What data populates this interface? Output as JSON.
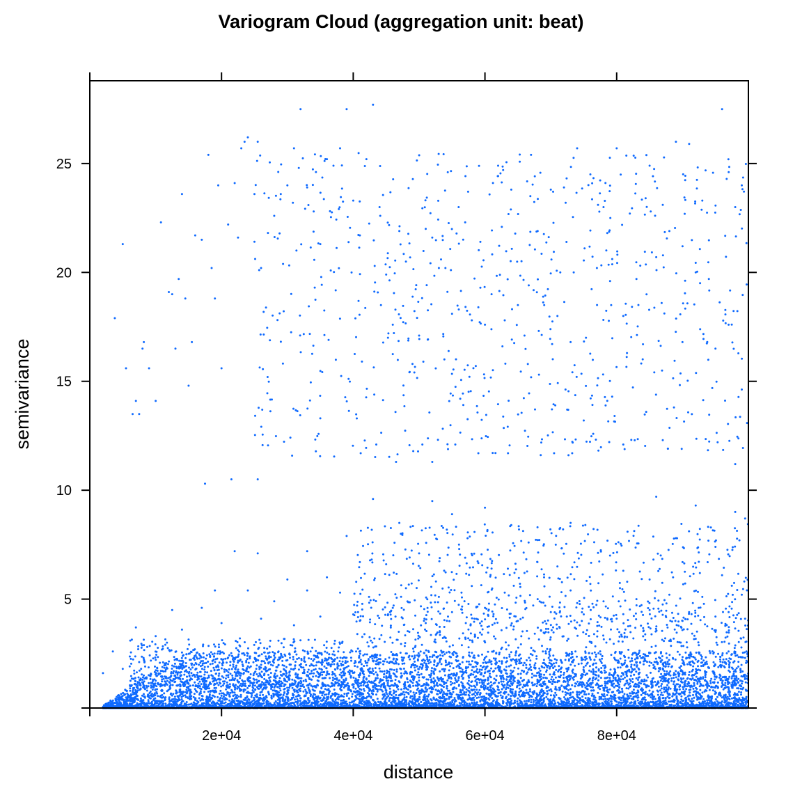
{
  "chart_data": {
    "type": "scatter",
    "title": "Variogram Cloud (aggregation unit: beat)",
    "xlabel": "distance",
    "ylabel": "semivariance",
    "xlim": [
      0,
      100000
    ],
    "ylim": [
      0,
      28.8
    ],
    "x_ticks": [
      {
        "value": 20000,
        "label": "2e+04"
      },
      {
        "value": 40000,
        "label": "4e+04"
      },
      {
        "value": 60000,
        "label": "6e+04"
      },
      {
        "value": 80000,
        "label": "8e+04"
      }
    ],
    "y_ticks": [
      {
        "value": 5,
        "label": "5"
      },
      {
        "value": 10,
        "label": "10"
      },
      {
        "value": 15,
        "label": "15"
      },
      {
        "value": 20,
        "label": "20"
      },
      {
        "value": 25,
        "label": "25"
      }
    ],
    "grid": false,
    "point_color": "#0F6AFF",
    "series": [
      {
        "values": [
          [
            5000,
            21.3
          ],
          [
            3800,
            17.9
          ],
          [
            6500,
            13.5
          ],
          [
            7500,
            13.5
          ],
          [
            7000,
            14.1
          ],
          [
            5500,
            15.6
          ],
          [
            8000,
            16.5
          ],
          [
            8200,
            16.8
          ],
          [
            9000,
            15.6
          ],
          [
            10000,
            14.1
          ],
          [
            10800,
            22.3
          ],
          [
            12000,
            19.1
          ],
          [
            12500,
            19.0
          ],
          [
            13000,
            16.5
          ],
          [
            13500,
            19.7
          ],
          [
            14000,
            23.6
          ],
          [
            14500,
            18.8
          ],
          [
            15000,
            14.8
          ],
          [
            15500,
            16.8
          ],
          [
            16000,
            21.7
          ],
          [
            17000,
            21.5
          ],
          [
            18000,
            25.4
          ],
          [
            18500,
            20.2
          ],
          [
            19000,
            18.8
          ],
          [
            19500,
            24.0
          ],
          [
            20000,
            15.6
          ],
          [
            21000,
            22.2
          ],
          [
            22000,
            24.1
          ],
          [
            22500,
            21.6
          ],
          [
            23000,
            25.7
          ],
          [
            23500,
            26.0
          ],
          [
            24000,
            26.2
          ],
          [
            25000,
            23.6
          ],
          [
            25500,
            26.0
          ],
          [
            26000,
            20.2
          ],
          [
            27000,
            15.2
          ],
          [
            28000,
            22.6
          ],
          [
            29000,
            23.6
          ],
          [
            30000,
            24.0
          ],
          [
            31000,
            25.7
          ],
          [
            32000,
            27.5
          ],
          [
            33000,
            23.9
          ],
          [
            34000,
            22.8
          ],
          [
            35000,
            21.3
          ],
          [
            36000,
            25.2
          ],
          [
            37000,
            24.9
          ],
          [
            38000,
            25.7
          ],
          [
            39000,
            27.5
          ],
          [
            40000,
            23.3
          ],
          [
            41000,
            21.7
          ],
          [
            42000,
            25.2
          ],
          [
            43000,
            27.7
          ],
          [
            44000,
            23.0
          ],
          [
            45000,
            19.9
          ],
          [
            46000,
            17.6
          ],
          [
            47000,
            21.9
          ],
          [
            48000,
            20.5
          ],
          [
            49000,
            15.8
          ],
          [
            50000,
            17.1
          ],
          [
            51000,
            22.0
          ],
          [
            52000,
            21.6
          ],
          [
            53000,
            20.2
          ],
          [
            54000,
            20.2
          ],
          [
            55000,
            18.1
          ],
          [
            56000,
            23.0
          ],
          [
            57000,
            22.3
          ],
          [
            58000,
            17.8
          ],
          [
            59000,
            18.4
          ],
          [
            60000,
            17.6
          ],
          [
            61000,
            19.0
          ],
          [
            62000,
            24.9
          ],
          [
            63000,
            17.8
          ],
          [
            64000,
            23.8
          ],
          [
            65000,
            18.5
          ],
          [
            66000,
            17.1
          ],
          [
            67000,
            25.4
          ],
          [
            68000,
            21.9
          ],
          [
            69000,
            18.5
          ],
          [
            70000,
            23.8
          ],
          [
            71000,
            18.0
          ],
          [
            72000,
            23.9
          ],
          [
            73000,
            16.8
          ],
          [
            74000,
            25.7
          ],
          [
            75000,
            13.2
          ],
          [
            76000,
            24.5
          ],
          [
            77000,
            20.2
          ],
          [
            78000,
            23.0
          ],
          [
            79000,
            19.6
          ],
          [
            80000,
            25.7
          ],
          [
            81000,
            18.0
          ],
          [
            82000,
            22.7
          ],
          [
            83000,
            19.7
          ],
          [
            84000,
            16.7
          ],
          [
            85000,
            24.9
          ],
          [
            86000,
            20.7
          ],
          [
            87000,
            23.1
          ],
          [
            88000,
            21.9
          ],
          [
            89000,
            26.0
          ],
          [
            90000,
            21.2
          ],
          [
            91000,
            25.9
          ],
          [
            92000,
            20.0
          ],
          [
            93000,
            23.3
          ],
          [
            94000,
            19.7
          ],
          [
            95000,
            16.5
          ],
          [
            96000,
            27.5
          ],
          [
            97000,
            17.6
          ],
          [
            98000,
            23.0
          ],
          [
            99000,
            24.0
          ],
          [
            46500,
            11.3
          ],
          [
            52000,
            11.3
          ],
          [
            50500,
            12.1
          ],
          [
            55500,
            12.1
          ],
          [
            59000,
            11.7
          ],
          [
            63500,
            11.7
          ],
          [
            70500,
            11.7
          ],
          [
            81000,
            12.1
          ],
          [
            87000,
            12.3
          ],
          [
            98000,
            11.2
          ],
          [
            43500,
            12.1
          ],
          [
            35000,
            13.3
          ],
          [
            17500,
            10.3
          ],
          [
            21500,
            10.5
          ],
          [
            25500,
            10.5
          ],
          [
            43000,
            9.6
          ],
          [
            52000,
            9.5
          ],
          [
            60000,
            9.2
          ],
          [
            73000,
            8.5
          ],
          [
            86000,
            9.7
          ],
          [
            92000,
            9.3
          ],
          [
            98000,
            9.0
          ],
          [
            99500,
            8.7
          ],
          [
            39000,
            7.9
          ],
          [
            33000,
            7.2
          ],
          [
            22000,
            7.2
          ],
          [
            25500,
            7.1
          ],
          [
            47000,
            8.5
          ],
          [
            55000,
            8.9
          ],
          [
            64000,
            8.4
          ],
          [
            79000,
            7.0
          ],
          [
            89000,
            7.8
          ],
          [
            95000,
            7.4
          ],
          [
            30000,
            5.9
          ],
          [
            36000,
            6.0
          ],
          [
            41000,
            6.7
          ],
          [
            45000,
            6.6
          ],
          [
            50000,
            7.1
          ],
          [
            57000,
            6.9
          ],
          [
            61000,
            6.4
          ],
          [
            66000,
            6.2
          ],
          [
            71000,
            6.5
          ],
          [
            76000,
            5.7
          ],
          [
            81000,
            6.3
          ],
          [
            85000,
            5.9
          ],
          [
            90000,
            6.7
          ],
          [
            96000,
            6.1
          ],
          [
            99000,
            5.2
          ],
          [
            12500,
            4.5
          ],
          [
            17000,
            4.6
          ],
          [
            19000,
            5.4
          ],
          [
            24000,
            5.4
          ],
          [
            28000,
            4.9
          ],
          [
            33000,
            5.4
          ],
          [
            38000,
            5.3
          ],
          [
            44000,
            5.2
          ],
          [
            48000,
            5.5
          ],
          [
            53000,
            5.1
          ],
          [
            58000,
            5.6
          ],
          [
            63000,
            5.3
          ],
          [
            68000,
            5.0
          ],
          [
            73000,
            5.4
          ],
          [
            78000,
            4.9
          ],
          [
            83000,
            5.0
          ],
          [
            88000,
            5.2
          ],
          [
            93000,
            5.1
          ],
          [
            97000,
            4.4
          ],
          [
            7000,
            3.7
          ],
          [
            10000,
            3.3
          ],
          [
            14000,
            3.6
          ],
          [
            20000,
            3.9
          ],
          [
            26000,
            4.1
          ],
          [
            31000,
            3.8
          ],
          [
            35000,
            4.2
          ],
          [
            40000,
            4.3
          ],
          [
            46000,
            4.6
          ],
          [
            51000,
            3.9
          ],
          [
            55000,
            4.4
          ],
          [
            60000,
            4.6
          ],
          [
            65000,
            4.0
          ],
          [
            70000,
            4.4
          ],
          [
            75000,
            4.3
          ],
          [
            80000,
            4.1
          ],
          [
            85000,
            4.5
          ],
          [
            90000,
            4.0
          ],
          [
            95000,
            4.2
          ],
          [
            99500,
            4.1
          ],
          [
            2000,
            1.6
          ],
          [
            3500,
            2.6
          ],
          [
            5000,
            1.8
          ]
        ]
      }
    ]
  }
}
